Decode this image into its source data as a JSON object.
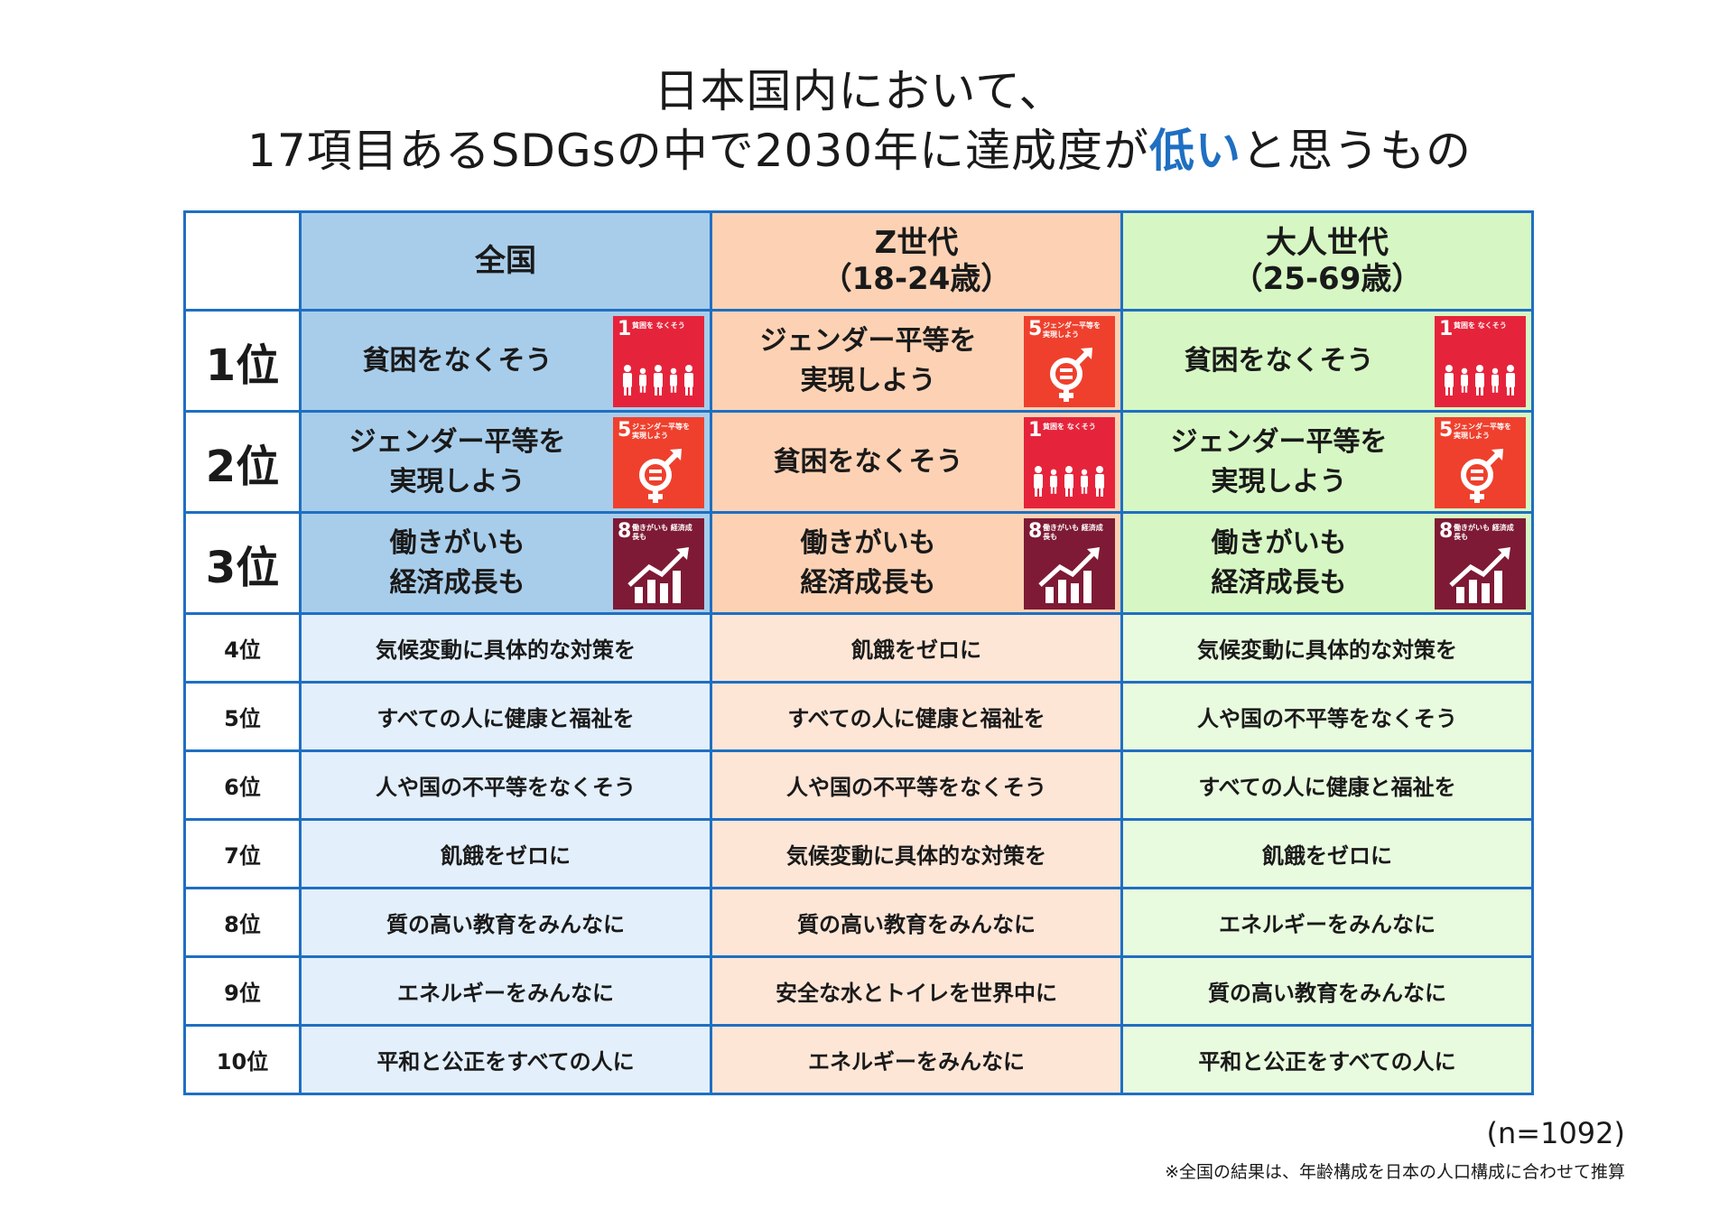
{
  "title": {
    "line1": "日本国内において、",
    "line2_before": "17項目あるSDGsの中で2030年に達成度が",
    "line2_highlight": "低い",
    "line2_after": "と思うもの"
  },
  "colors": {
    "border": "#1f6fc2",
    "highlight": "#1f6fc2",
    "all": "#a8cdea",
    "genz": "#fdd2b4",
    "adult": "#d6f7c3"
  },
  "headers": {
    "rank": "",
    "all": "全国",
    "genz_line1": "Z世代",
    "genz_line2": "（18-24歳）",
    "adult_line1": "大人世代",
    "adult_line2": "（25-69歳）"
  },
  "sdg_icons": {
    "goal1": {
      "number": "1",
      "caption": "貧困を なくそう",
      "icon": "family-icon"
    },
    "goal5": {
      "number": "5",
      "caption": "ジェンダー平等を 実現しよう",
      "icon": "gender-equality-icon"
    },
    "goal8": {
      "number": "8",
      "caption": "働きがいも 経済成長も",
      "icon": "growth-chart-icon"
    }
  },
  "top3": [
    {
      "rank": "1位",
      "all": {
        "line1": "貧困をなくそう",
        "line2": "",
        "goal": "1"
      },
      "genz": {
        "line1": "ジェンダー平等を",
        "line2": "実現しよう",
        "goal": "5"
      },
      "adult": {
        "line1": "貧困をなくそう",
        "line2": "",
        "goal": "1"
      }
    },
    {
      "rank": "2位",
      "all": {
        "line1": "ジェンダー平等を",
        "line2": "実現しよう",
        "goal": "5"
      },
      "genz": {
        "line1": "貧困をなくそう",
        "line2": "",
        "goal": "1"
      },
      "adult": {
        "line1": "ジェンダー平等を",
        "line2": "実現しよう",
        "goal": "5"
      }
    },
    {
      "rank": "3位",
      "all": {
        "line1": "働きがいも",
        "line2": "経済成長も",
        "goal": "8"
      },
      "genz": {
        "line1": "働きがいも",
        "line2": "経済成長も",
        "goal": "8"
      },
      "adult": {
        "line1": "働きがいも",
        "line2": "経済成長も",
        "goal": "8"
      }
    }
  ],
  "rest": [
    {
      "rank": "4位",
      "all": "気候変動に具体的な対策を",
      "genz": "飢餓をゼロに",
      "adult": "気候変動に具体的な対策を"
    },
    {
      "rank": "5位",
      "all": "すべての人に健康と福祉を",
      "genz": "すべての人に健康と福祉を",
      "adult": "人や国の不平等をなくそう"
    },
    {
      "rank": "6位",
      "all": "人や国の不平等をなくそう",
      "genz": "人や国の不平等をなくそう",
      "adult": "すべての人に健康と福祉を"
    },
    {
      "rank": "7位",
      "all": "飢餓をゼロに",
      "genz": "気候変動に具体的な対策を",
      "adult": "飢餓をゼロに"
    },
    {
      "rank": "8位",
      "all": "質の高い教育をみんなに",
      "genz": "質の高い教育をみんなに",
      "adult": "エネルギーをみんなに"
    },
    {
      "rank": "9位",
      "all": "エネルギーをみんなに",
      "genz": "安全な水とトイレを世界中に",
      "adult": "質の高い教育をみんなに"
    },
    {
      "rank": "10位",
      "all": "平和と公正をすべての人に",
      "genz": "エネルギーをみんなに",
      "adult": "平和と公正をすべての人に"
    }
  ],
  "sample_size": "(n=1092)",
  "footnote": "※全国の結果は、年齢構成を日本の人口構成に合わせて推算"
}
